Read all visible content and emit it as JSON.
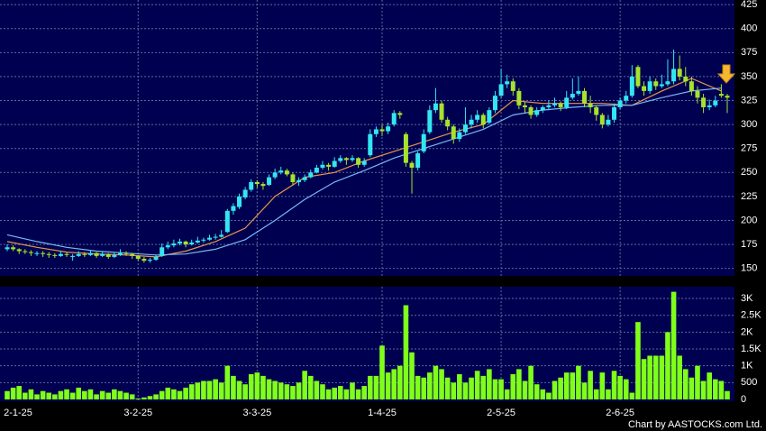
{
  "chart_data": {
    "type": "candlestick",
    "credit": "Chart by AASTOCKS.com Ltd.",
    "up_color": "#33e6f2",
    "down_color": "#a6e22e",
    "grid": true,
    "ylim": [
      145,
      427
    ],
    "yticks": [
      150,
      175,
      200,
      225,
      250,
      275,
      300,
      325,
      350,
      375,
      400,
      425
    ],
    "xticks": [
      {
        "value": 0,
        "label": "2-1-25"
      },
      {
        "value": 22,
        "label": "3-2-25"
      },
      {
        "value": 42,
        "label": "3-3-25"
      },
      {
        "value": 63,
        "label": "1-4-25"
      },
      {
        "value": 83,
        "label": "2-5-25"
      },
      {
        "value": 103,
        "label": "2-6-25"
      }
    ],
    "ohlc": [
      [
        170,
        175,
        168,
        172
      ],
      [
        172,
        174,
        168,
        170
      ],
      [
        170,
        171,
        165,
        168
      ],
      [
        168,
        170,
        165,
        167
      ],
      [
        167,
        169,
        163,
        166
      ],
      [
        165,
        168,
        163,
        166
      ],
      [
        166,
        168,
        162,
        165
      ],
      [
        165,
        167,
        161,
        164
      ],
      [
        164,
        166,
        161,
        163
      ],
      [
        163,
        168,
        162,
        165
      ],
      [
        165,
        167,
        162,
        164
      ],
      [
        162,
        165,
        158,
        163
      ],
      [
        163,
        168,
        162,
        165
      ],
      [
        165,
        167,
        162,
        164
      ],
      [
        164,
        169,
        163,
        166
      ],
      [
        166,
        167,
        161,
        163
      ],
      [
        163,
        168,
        162,
        165
      ],
      [
        165,
        166,
        160,
        162
      ],
      [
        162,
        166,
        161,
        164
      ],
      [
        164,
        170,
        163,
        166
      ],
      [
        166,
        168,
        163,
        165
      ],
      [
        165,
        166,
        160,
        163
      ],
      [
        163,
        164,
        158,
        160
      ],
      [
        160,
        162,
        156,
        158
      ],
      [
        158,
        161,
        156,
        159
      ],
      [
        159,
        164,
        158,
        162
      ],
      [
        163,
        176,
        162,
        172
      ],
      [
        172,
        178,
        170,
        174
      ],
      [
        174,
        180,
        172,
        176
      ],
      [
        176,
        181,
        174,
        178
      ],
      [
        178,
        179,
        172,
        175
      ],
      [
        175,
        180,
        174,
        177
      ],
      [
        177,
        183,
        176,
        179
      ],
      [
        179,
        182,
        177,
        180
      ],
      [
        180,
        185,
        179,
        182
      ],
      [
        182,
        186,
        180,
        183
      ],
      [
        183,
        190,
        182,
        185
      ],
      [
        188,
        212,
        187,
        210
      ],
      [
        210,
        218,
        206,
        215
      ],
      [
        214,
        228,
        212,
        225
      ],
      [
        224,
        235,
        222,
        232
      ],
      [
        232,
        243,
        230,
        240
      ],
      [
        240,
        242,
        234,
        238
      ],
      [
        238,
        240,
        232,
        236
      ],
      [
        237,
        248,
        236,
        245
      ],
      [
        245,
        254,
        243,
        250
      ],
      [
        250,
        256,
        248,
        252
      ],
      [
        252,
        254,
        246,
        248
      ],
      [
        248,
        250,
        237,
        240
      ],
      [
        240,
        245,
        236,
        242
      ],
      [
        242,
        248,
        240,
        245
      ],
      [
        245,
        253,
        244,
        250
      ],
      [
        250,
        258,
        249,
        255
      ],
      [
        255,
        262,
        253,
        258
      ],
      [
        258,
        260,
        252,
        256
      ],
      [
        256,
        266,
        255,
        262
      ],
      [
        262,
        268,
        260,
        265
      ],
      [
        265,
        266,
        258,
        263
      ],
      [
        263,
        268,
        261,
        265
      ],
      [
        265,
        266,
        255,
        258
      ],
      [
        258,
        265,
        256,
        262
      ],
      [
        268,
        295,
        266,
        290
      ],
      [
        290,
        298,
        287,
        295
      ],
      [
        295,
        300,
        288,
        293
      ],
      [
        293,
        302,
        290,
        298
      ],
      [
        300,
        315,
        298,
        312
      ],
      [
        312,
        314,
        306,
        310
      ],
      [
        290,
        292,
        256,
        260
      ],
      [
        260,
        262,
        228,
        255
      ],
      [
        255,
        272,
        252,
        270
      ],
      [
        272,
        295,
        270,
        290
      ],
      [
        292,
        320,
        290,
        315
      ],
      [
        315,
        338,
        312,
        322
      ],
      [
        322,
        325,
        302,
        305
      ],
      [
        305,
        308,
        294,
        298
      ],
      [
        298,
        300,
        280,
        285
      ],
      [
        285,
        296,
        282,
        292
      ],
      [
        292,
        318,
        290,
        300
      ],
      [
        300,
        310,
        296,
        305
      ],
      [
        305,
        315,
        302,
        310
      ],
      [
        310,
        312,
        296,
        300
      ],
      [
        302,
        318,
        300,
        315
      ],
      [
        315,
        335,
        312,
        330
      ],
      [
        330,
        358,
        328,
        342
      ],
      [
        342,
        352,
        338,
        345
      ],
      [
        345,
        348,
        330,
        335
      ],
      [
        335,
        338,
        316,
        320
      ],
      [
        320,
        324,
        312,
        318
      ],
      [
        318,
        320,
        306,
        310
      ],
      [
        310,
        318,
        308,
        315
      ],
      [
        315,
        320,
        312,
        318
      ],
      [
        318,
        325,
        315,
        320
      ],
      [
        320,
        328,
        318,
        322
      ],
      [
        322,
        324,
        314,
        318
      ],
      [
        318,
        335,
        316,
        328
      ],
      [
        328,
        348,
        326,
        332
      ],
      [
        332,
        350,
        330,
        335
      ],
      [
        335,
        338,
        318,
        322
      ],
      [
        322,
        330,
        312,
        318
      ],
      [
        318,
        320,
        304,
        310
      ],
      [
        310,
        312,
        296,
        300
      ],
      [
        300,
        310,
        298,
        305
      ],
      [
        305,
        322,
        302,
        318
      ],
      [
        318,
        328,
        316,
        325
      ],
      [
        325,
        335,
        322,
        330
      ],
      [
        330,
        362,
        328,
        350
      ],
      [
        360,
        362,
        338,
        340
      ],
      [
        340,
        345,
        330,
        335
      ],
      [
        335,
        350,
        332,
        345
      ],
      [
        345,
        348,
        336,
        340
      ],
      [
        340,
        352,
        338,
        342
      ],
      [
        342,
        368,
        340,
        345
      ],
      [
        345,
        378,
        342,
        358
      ],
      [
        358,
        372,
        346,
        350
      ],
      [
        350,
        360,
        340,
        345
      ],
      [
        345,
        350,
        330,
        335
      ],
      [
        335,
        340,
        322,
        328
      ],
      [
        328,
        332,
        312,
        318
      ],
      [
        318,
        326,
        315,
        320
      ],
      [
        320,
        330,
        318,
        325
      ],
      [
        332,
        342,
        328,
        330
      ],
      [
        330,
        332,
        312,
        328
      ]
    ],
    "ma": [
      {
        "color": "#e8954a",
        "x": [
          0,
          5,
          10,
          15,
          20,
          25,
          30,
          35,
          40,
          45,
          50,
          55,
          60,
          65,
          70,
          75,
          80,
          85,
          90,
          95,
          100,
          105,
          110,
          115,
          120
        ],
        "values": [
          178,
          172,
          167,
          165,
          164,
          162,
          168,
          178,
          192,
          225,
          245,
          250,
          262,
          272,
          282,
          292,
          300,
          325,
          322,
          322,
          322,
          320,
          335,
          348,
          335
        ]
      },
      {
        "color": "#7ab8f5",
        "x": [
          0,
          5,
          10,
          15,
          20,
          25,
          30,
          35,
          40,
          45,
          50,
          55,
          60,
          65,
          70,
          75,
          80,
          85,
          90,
          95,
          100,
          105,
          110,
          115,
          120
        ],
        "values": [
          185,
          178,
          172,
          168,
          166,
          164,
          165,
          170,
          180,
          200,
          222,
          240,
          252,
          265,
          275,
          285,
          295,
          310,
          315,
          318,
          320,
          320,
          328,
          335,
          338
        ]
      }
    ],
    "volume": {
      "color": "#80ff1a",
      "ylim": [
        0,
        3350
      ],
      "yticks": [
        0,
        500,
        {
          "value": 1000,
          "label": "1K"
        },
        {
          "value": 1500,
          "label": "1.5K"
        },
        {
          "value": 2000,
          "label": "2K"
        },
        {
          "value": 2500,
          "label": "2.5K"
        },
        {
          "value": 3000,
          "label": "3K"
        }
      ],
      "values": [
        250,
        350,
        400,
        200,
        300,
        150,
        250,
        200,
        150,
        250,
        300,
        200,
        350,
        250,
        300,
        150,
        250,
        200,
        300,
        250,
        200,
        150,
        30,
        60,
        100,
        150,
        250,
        350,
        300,
        250,
        350,
        450,
        500,
        550,
        550,
        600,
        500,
        1000,
        700,
        550,
        450,
        750,
        800,
        700,
        600,
        550,
        500,
        450,
        400,
        500,
        850,
        700,
        550,
        450,
        300,
        350,
        400,
        300,
        500,
        300,
        400,
        700,
        700,
        1600,
        800,
        900,
        1000,
        2800,
        1400,
        700,
        650,
        800,
        1000,
        900,
        650,
        500,
        750,
        500,
        650,
        850,
        700,
        900,
        600,
        600,
        300,
        750,
        900,
        550,
        1000,
        450,
        300,
        200,
        550,
        650,
        800,
        800,
        1000,
        500,
        850,
        300,
        800,
        300,
        850,
        700,
        600,
        200,
        2300,
        1200,
        1300,
        1300,
        1300,
        2000,
        3200,
        1300,
        900,
        650,
        1000,
        550,
        800,
        600,
        550,
        250
      ]
    }
  }
}
